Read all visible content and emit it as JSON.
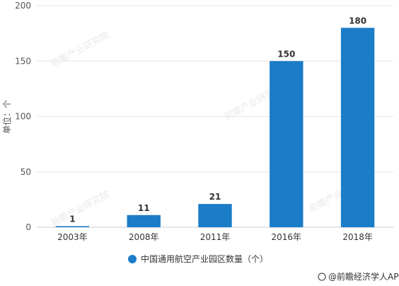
{
  "chart_data": {
    "type": "bar",
    "categories": [
      "2003年",
      "2008年",
      "2011年",
      "2016年",
      "2018年"
    ],
    "series": [
      {
        "name": "中国通用航空产业园区数量（个）",
        "values": [
          1,
          11,
          21,
          150,
          180
        ]
      }
    ],
    "ylabel": "单位：个",
    "xlabel": "",
    "ylim": [
      0,
      200
    ],
    "yticks": [
      0,
      50,
      100,
      150,
      200
    ],
    "bar_color": "#1b7cc8",
    "grid": true,
    "legend_position": "bottom-center"
  },
  "credit": "@前瞻经济学人APP",
  "watermark_text": "前瞻产业研究院"
}
